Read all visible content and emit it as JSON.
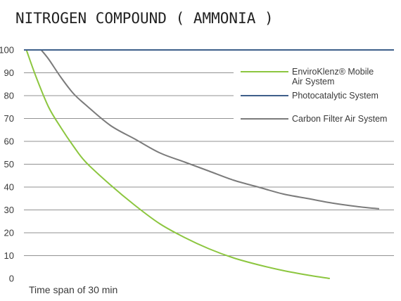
{
  "chart_data": {
    "type": "line",
    "title": "NITROGEN COMPOUND ( AMMONIA )",
    "xlabel": "Time span of 30 min",
    "ylabel": "",
    "ylim": [
      0,
      100
    ],
    "xlim": [
      0,
      30
    ],
    "yticks": [
      "0",
      "10",
      "20",
      "30",
      "40",
      "50",
      "60",
      "70",
      "80",
      "90",
      "100"
    ],
    "grid": true,
    "legend_position": "right",
    "series": [
      {
        "name": "EnviroKlenz® Mobile Air System",
        "name_lines": [
          "EnviroKlenz® Mobile",
          "Air System"
        ],
        "color": "#8cc63f",
        "x": [
          0.2,
          1,
          2,
          3,
          4,
          5,
          7,
          9,
          11,
          13,
          15,
          17,
          19,
          21,
          23,
          24.8
        ],
        "values": [
          100,
          88,
          75,
          66,
          58,
          51,
          41,
          32,
          24,
          18,
          13,
          9,
          6,
          3.5,
          1.5,
          0
        ]
      },
      {
        "name": "Photocatalytic System",
        "name_lines": [
          "Photocatalytic System"
        ],
        "color": "#3e5f8a",
        "x": [
          0,
          30
        ],
        "values": [
          100,
          100
        ]
      },
      {
        "name": "Carbon Filter Air System",
        "name_lines": [
          "Carbon Filter Air System"
        ],
        "color": "#7b7b7b",
        "x": [
          1.4,
          2,
          3,
          4,
          5,
          7,
          9,
          11,
          13,
          15,
          17,
          19,
          21,
          23,
          25,
          27,
          28.8
        ],
        "values": [
          100,
          96,
          88,
          81,
          76,
          67,
          61,
          55,
          51,
          47,
          43,
          40,
          37,
          35,
          33,
          31.5,
          30.5
        ]
      }
    ]
  }
}
